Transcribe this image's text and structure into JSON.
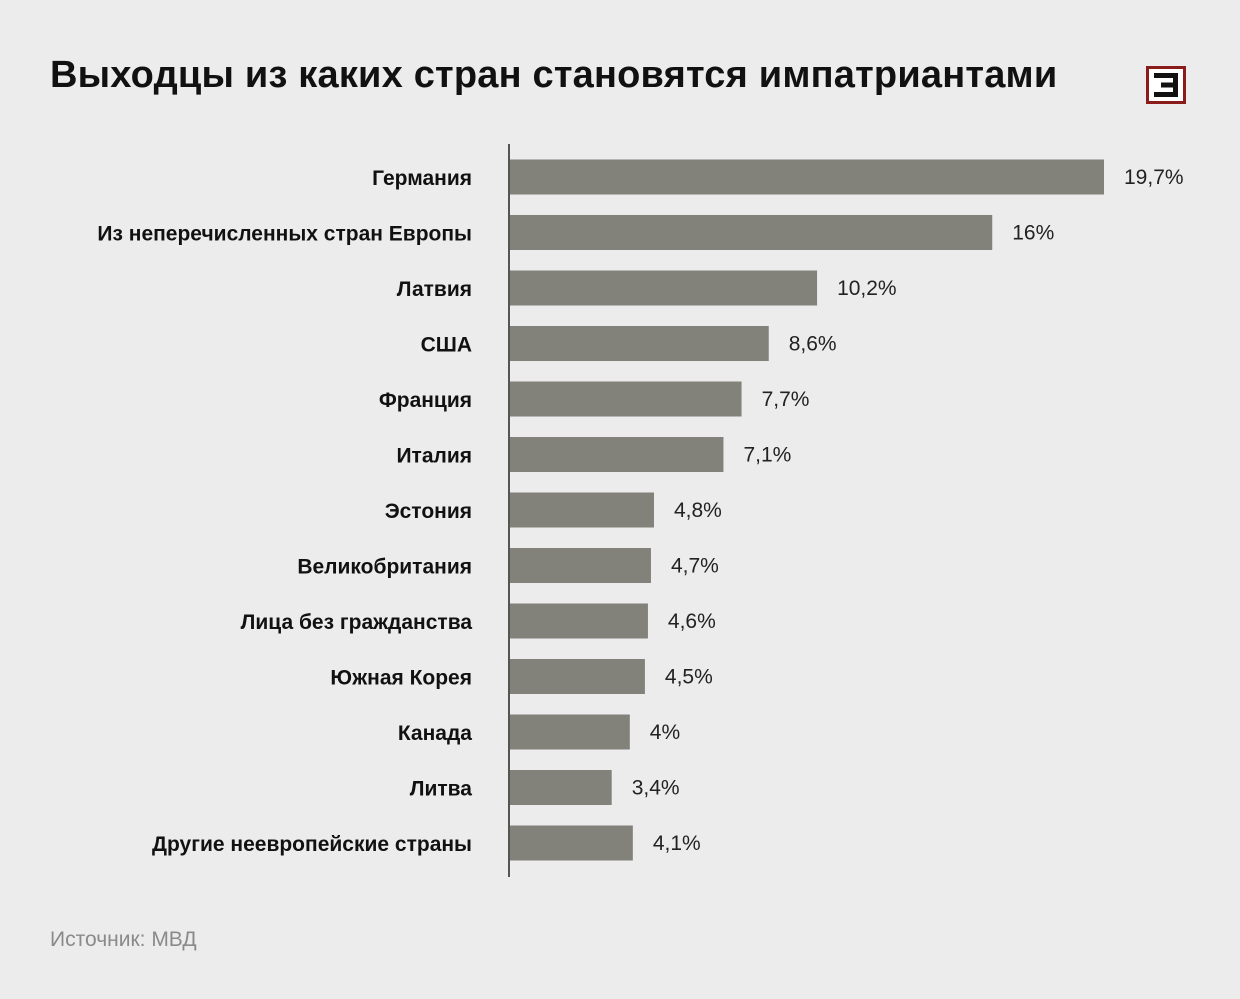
{
  "chart_data": {
    "type": "bar",
    "orientation": "horizontal",
    "title": "Выходцы из каких стран становятся импатриантами",
    "categories": [
      "Германия",
      "Из неперечисленных стран Европы",
      "Латвия",
      "США",
      "Франция",
      "Италия",
      "Эстония",
      "Великобритания",
      "Лица без гражданства",
      "Южная Корея",
      "Канада",
      "Литва",
      "Другие неевропейские страны"
    ],
    "values": [
      19.7,
      16,
      10.2,
      8.6,
      7.7,
      7.1,
      4.8,
      4.7,
      4.6,
      4.5,
      4,
      3.4,
      4.1
    ],
    "value_labels": [
      "19,7%",
      "16%",
      "10,2%",
      "8,6%",
      "7,7%",
      "7,1%",
      "4,8%",
      "4,7%",
      "4,6%",
      "4,5%",
      "4%",
      "3,4%",
      "4,1%"
    ],
    "unit": "%",
    "xlim": [
      0,
      19.7
    ],
    "grid": false,
    "colors": {
      "bar": "#82817a",
      "axis": "#555555",
      "label": "#111111",
      "value": "#222222"
    }
  },
  "logo": {
    "frame_color": "#8b1c1c"
  },
  "footer": {
    "source": "Источник: МВД"
  }
}
